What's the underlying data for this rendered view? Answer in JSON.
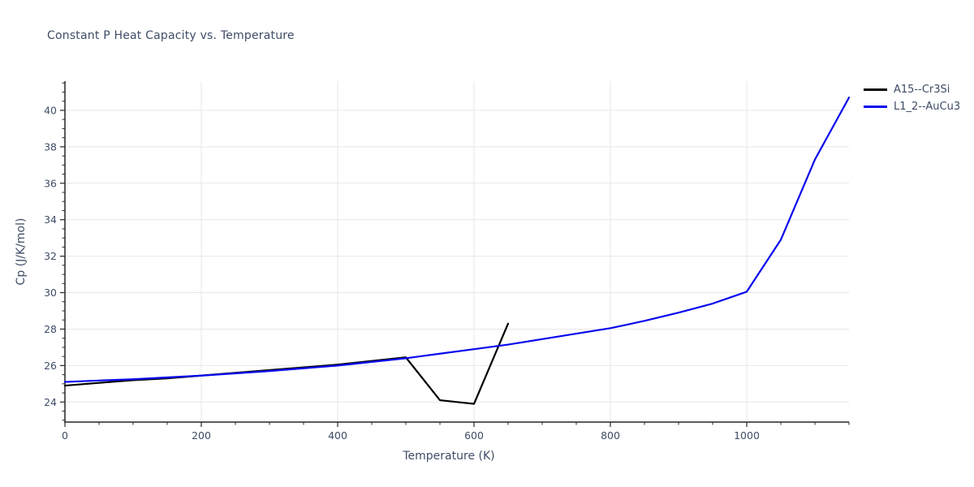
{
  "header": {
    "title": "Constant P Heat Capacity vs. Temperature"
  },
  "style": {
    "text_color": "#3e4c66",
    "grid_color": "#e7e7e7",
    "axis_color": "#262626",
    "background_color": "#ffffff"
  },
  "chart_data": {
    "type": "line",
    "title": "Constant P Heat Capacity vs. Temperature",
    "xlabel": "Temperature (K)",
    "ylabel": "Cp (J/K/mol)",
    "xlim": [
      0,
      1150
    ],
    "ylim": [
      22.9,
      41.6
    ],
    "x_major_ticks": [
      0,
      200,
      400,
      600,
      800,
      1000
    ],
    "x_minor_step": 50,
    "y_major_ticks": [
      24,
      26,
      28,
      30,
      32,
      34,
      36,
      38,
      40
    ],
    "y_minor_step": 0.5,
    "grid": true,
    "legend_position": "top-right-outside",
    "series": [
      {
        "name": "A15--Cr3Si",
        "color": "#000000",
        "x": [
          0,
          50,
          100,
          150,
          200,
          250,
          300,
          350,
          400,
          450,
          500,
          550,
          600,
          650
        ],
        "y": [
          24.9,
          25.05,
          25.2,
          25.3,
          25.45,
          25.6,
          25.75,
          25.9,
          26.05,
          26.25,
          26.45,
          24.1,
          23.9,
          28.3
        ]
      },
      {
        "name": "L1_2--AuCu3",
        "color": "#0707ee",
        "x": [
          0,
          50,
          100,
          150,
          200,
          250,
          300,
          350,
          400,
          450,
          500,
          550,
          600,
          650,
          700,
          750,
          800,
          850,
          900,
          950,
          1000,
          1050,
          1100,
          1150
        ],
        "y": [
          25.1,
          25.18,
          25.25,
          25.35,
          25.45,
          25.57,
          25.7,
          25.85,
          26.0,
          26.2,
          26.4,
          26.65,
          26.9,
          27.15,
          27.45,
          27.75,
          28.05,
          28.45,
          28.9,
          29.4,
          30.05,
          32.9,
          37.3,
          40.7
        ]
      }
    ]
  }
}
